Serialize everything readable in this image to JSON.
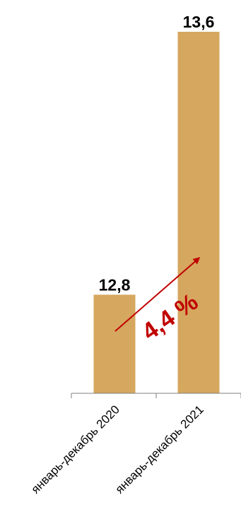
{
  "chart_data": {
    "type": "bar",
    "categories": [
      "январь-декабрь 2020",
      "январь-декабрь 2021"
    ],
    "values": [
      12.8,
      13.6
    ],
    "value_labels": [
      "12,8",
      "13,6"
    ],
    "title": "",
    "xlabel": "",
    "ylabel": "",
    "ylim": [
      12.5,
      13.6
    ],
    "grid": false,
    "bar_color": "#D6A75E",
    "annotation": {
      "text": "4,4 %",
      "color": "#C00000",
      "arrow": "rising"
    }
  }
}
